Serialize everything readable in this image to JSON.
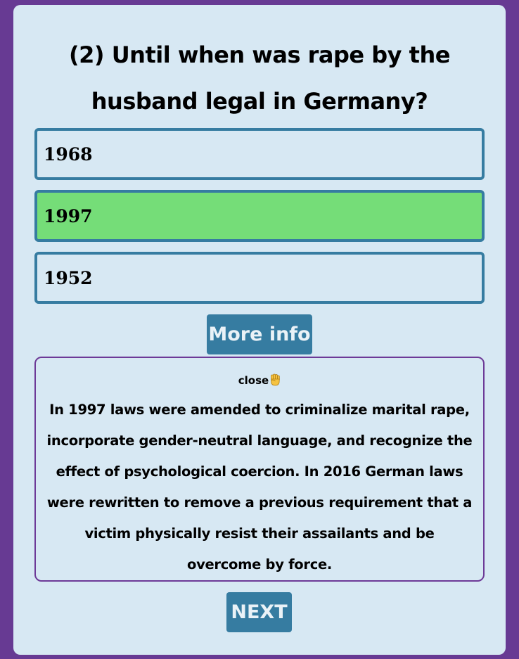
{
  "quiz": {
    "question": "(2) Until when was rape by the husband legal in Germany?",
    "options": [
      {
        "label": "1968",
        "state": "default"
      },
      {
        "label": "1997",
        "state": "correct"
      },
      {
        "label": "1952",
        "state": "default"
      }
    ],
    "more_info_label": "More info",
    "info": {
      "close_label": "close",
      "close_icon": "raised-fist-icon",
      "text": "In 1997 laws were amended to criminalize marital rape, incorporate gender-neutral language, and recognize the effect of psychological coercion. In 2016 German laws were rewritten to remove a previous requirement that a victim physically resist their assailants and be overcome by force."
    },
    "next_label": "NEXT"
  },
  "colors": {
    "page_background": "#673a93",
    "card_background": "#d7e8f3",
    "accent": "#367ca1",
    "correct": "#75dd78",
    "info_border": "#6d3a97"
  }
}
